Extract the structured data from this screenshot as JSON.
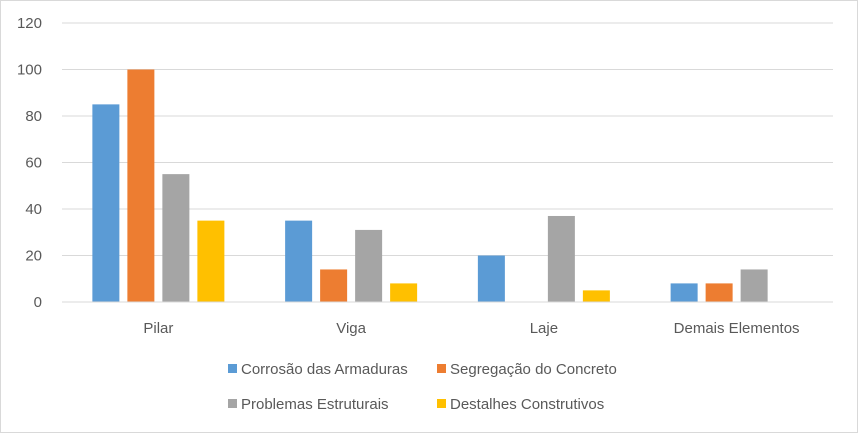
{
  "chart_data": {
    "type": "bar",
    "categories": [
      "Pilar",
      "Viga",
      "Laje",
      "Demais Elementos"
    ],
    "series": [
      {
        "name": "Corrosão das Armaduras",
        "color": "#5b9bd5",
        "values": [
          85,
          35,
          20,
          8
        ]
      },
      {
        "name": "Segregação do Concreto",
        "color": "#ed7d31",
        "values": [
          100,
          14,
          0,
          8
        ]
      },
      {
        "name": "Problemas Estruturais",
        "color": "#a5a5a5",
        "values": [
          55,
          31,
          37,
          14
        ]
      },
      {
        "name": "Destalhes Construtivos",
        "color": "#ffc000",
        "values": [
          35,
          8,
          5,
          0
        ]
      }
    ],
    "ylim": [
      0,
      120
    ],
    "yticks": [
      0,
      20,
      40,
      60,
      80,
      100,
      120
    ],
    "grid": true,
    "legend_position": "bottom"
  }
}
